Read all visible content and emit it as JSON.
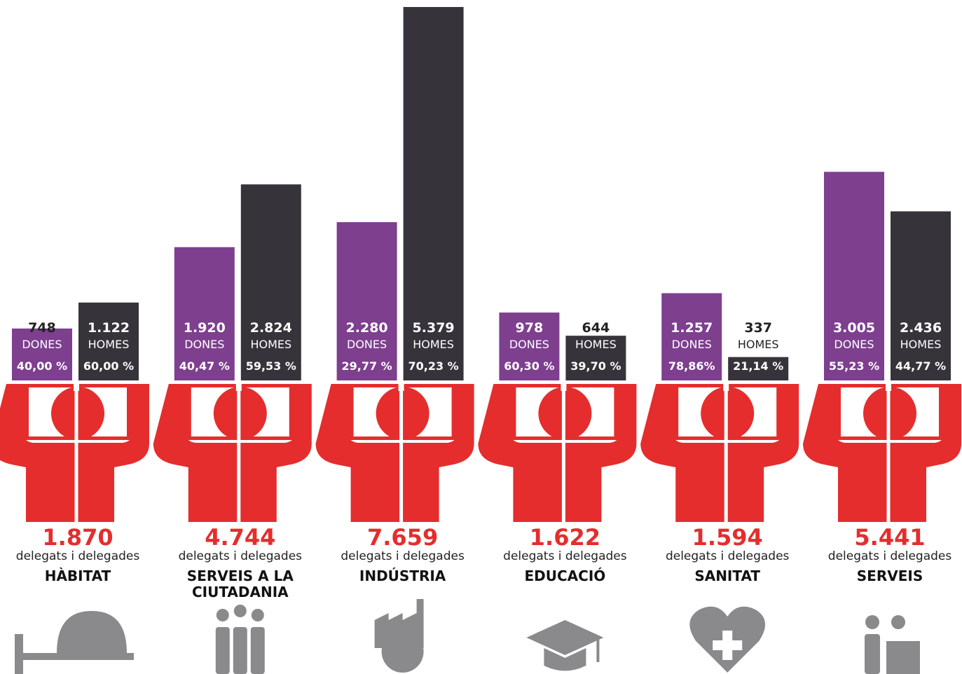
{
  "chart_data": {
    "type": "bar",
    "subtitle": "delegats i delegades",
    "categories": [
      "HÀBITAT",
      "SERVEIS A LA CIUTADANIA",
      "INDÚSTRIA",
      "EDUCACIÓ",
      "SANITAT",
      "SERVEIS"
    ],
    "totals": [
      1870,
      4744,
      7659,
      1622,
      1594,
      5441
    ],
    "total_labels": [
      "1.870",
      "4.744",
      "7.659",
      "1.622",
      "1.594",
      "5.441"
    ],
    "series": [
      {
        "name": "DONES",
        "color": "#7e3f8f",
        "values": [
          748,
          1920,
          2280,
          978,
          1257,
          3005
        ],
        "value_labels": [
          "748",
          "1.920",
          "2.280",
          "978",
          "1.257",
          "3.005"
        ],
        "percents": [
          40.0,
          40.47,
          29.77,
          60.3,
          78.86,
          55.23
        ],
        "percent_labels": [
          "40,00 %",
          "40,47 %",
          "29,77 %",
          "60,30 %",
          "78,86%",
          "55,23 %"
        ]
      },
      {
        "name": "HOMES",
        "color": "#36343a",
        "values": [
          1122,
          2824,
          5379,
          644,
          337,
          2436
        ],
        "value_labels": [
          "1.122",
          "2.824",
          "5.379",
          "644",
          "337",
          "2.436"
        ],
        "percents": [
          60.0,
          59.53,
          70.23,
          39.7,
          21.14,
          44.77
        ],
        "percent_labels": [
          "60,00 %",
          "59,53 %",
          "70,23 %",
          "39,70 %",
          "21,14 %",
          "44,77 %"
        ]
      }
    ]
  }
}
